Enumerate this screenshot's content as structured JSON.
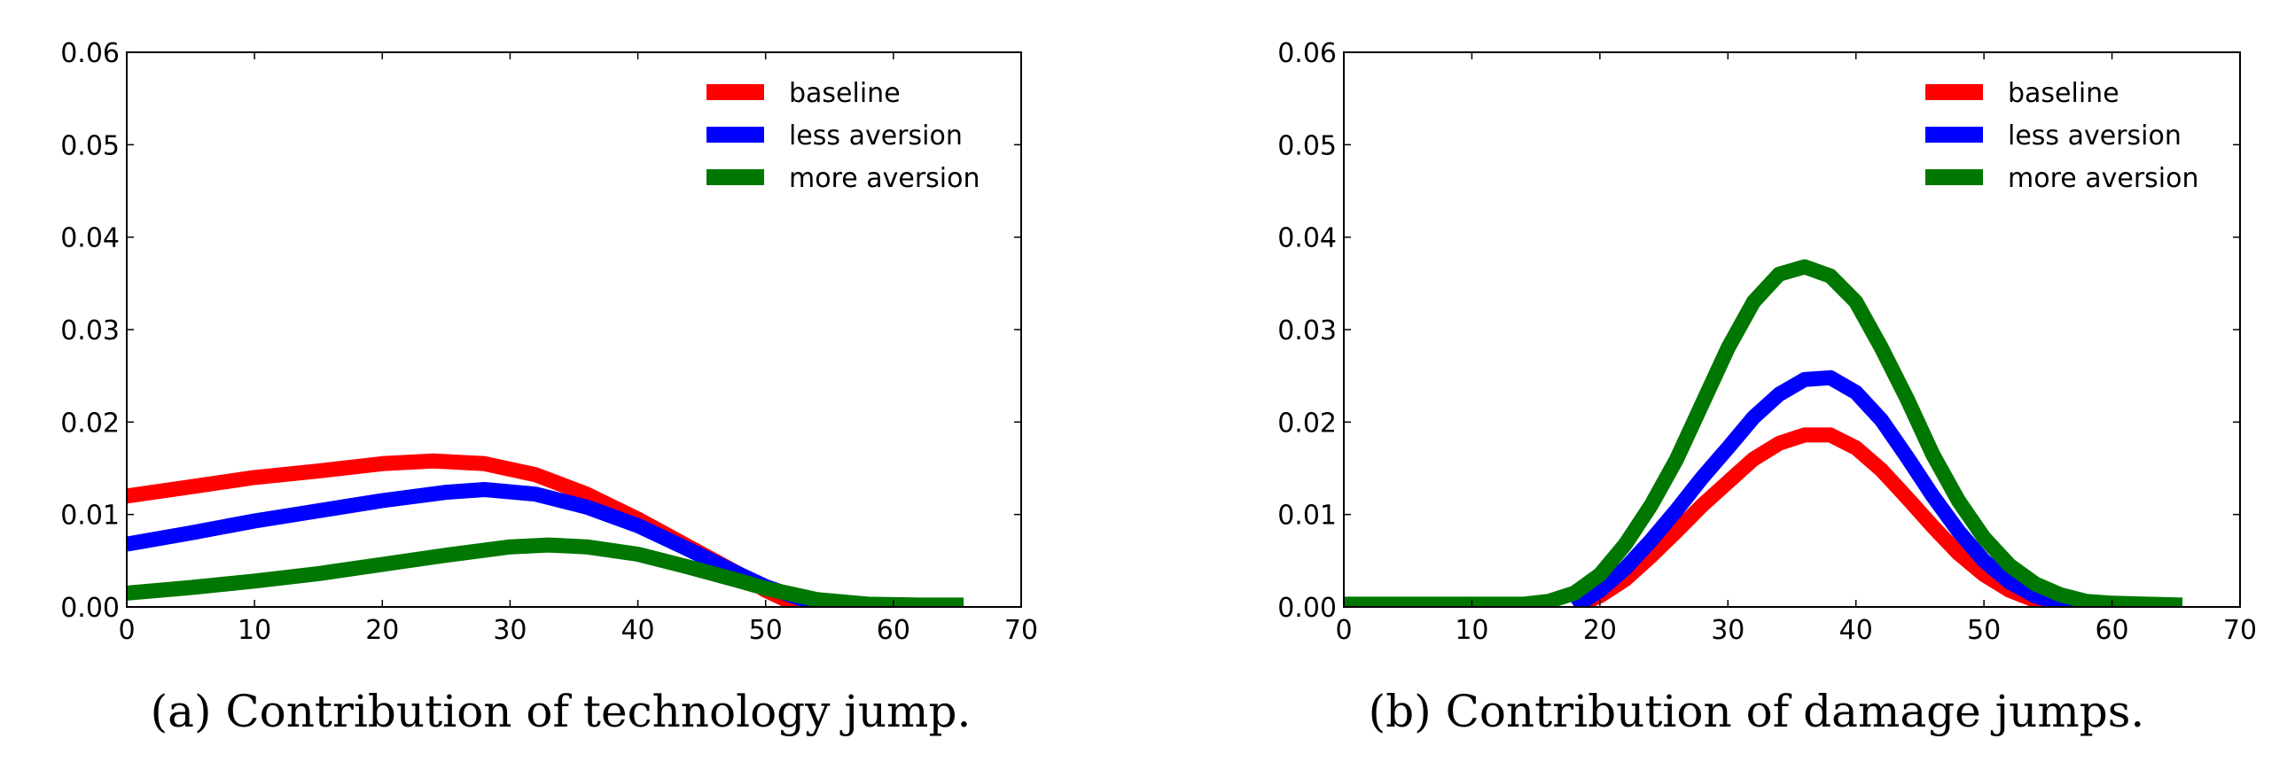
{
  "chart_data": [
    {
      "type": "line",
      "caption": "(a) Contribution of technology jump.",
      "xlim": [
        0,
        70
      ],
      "ylim": [
        0,
        0.06
      ],
      "xticks": [
        "0",
        "10",
        "20",
        "30",
        "40",
        "50",
        "60",
        "70"
      ],
      "yticks": [
        "0.00",
        "0.01",
        "0.02",
        "0.03",
        "0.04",
        "0.05",
        "0.06"
      ],
      "legend_position": "top-right",
      "series": [
        {
          "name": "baseline",
          "color": "#ff0000",
          "x": [
            0,
            5,
            10,
            15,
            20,
            24,
            28,
            32,
            36,
            40,
            44,
            48,
            50,
            52,
            54
          ],
          "y": [
            0.012,
            0.013,
            0.014,
            0.0147,
            0.0155,
            0.0158,
            0.0155,
            0.0143,
            0.0122,
            0.0095,
            0.0065,
            0.0035,
            0.0018,
            0.0005,
            0.0
          ]
        },
        {
          "name": "less aversion",
          "color": "#0000ff",
          "x": [
            0,
            5,
            10,
            15,
            20,
            25,
            28,
            32,
            36,
            40,
            44,
            48,
            50,
            54,
            56
          ],
          "y": [
            0.0068,
            0.008,
            0.0093,
            0.0104,
            0.0115,
            0.0124,
            0.0127,
            0.0122,
            0.0108,
            0.0088,
            0.0062,
            0.0035,
            0.0022,
            0.0003,
            0.0
          ]
        },
        {
          "name": "more aversion",
          "color": "#007700",
          "x": [
            0,
            5,
            10,
            15,
            20,
            25,
            30,
            33,
            36,
            40,
            44,
            48,
            50,
            54,
            58,
            62,
            65.5
          ],
          "y": [
            0.0015,
            0.0021,
            0.0028,
            0.0036,
            0.0046,
            0.0056,
            0.0065,
            0.0067,
            0.0065,
            0.0057,
            0.0043,
            0.0028,
            0.002,
            0.0008,
            0.0003,
            0.0002,
            0.0002
          ]
        }
      ]
    },
    {
      "type": "line",
      "caption": "(b) Contribution of damage jumps.",
      "xlim": [
        0,
        70
      ],
      "ylim": [
        0,
        0.06
      ],
      "xticks": [
        "0",
        "10",
        "20",
        "30",
        "40",
        "50",
        "60",
        "70"
      ],
      "yticks": [
        "0.00",
        "0.01",
        "0.02",
        "0.03",
        "0.04",
        "0.05",
        "0.06"
      ],
      "legend_position": "top-right",
      "series": [
        {
          "name": "baseline",
          "color": "#ff0000",
          "x": [
            18,
            20,
            22,
            24,
            26,
            28,
            30,
            32,
            34,
            36,
            38,
            40,
            42,
            44,
            46,
            48,
            50,
            52,
            54,
            56,
            57
          ],
          "y": [
            0,
            0.0012,
            0.003,
            0.0055,
            0.0082,
            0.011,
            0.0135,
            0.016,
            0.0177,
            0.0186,
            0.0186,
            0.0172,
            0.0148,
            0.0118,
            0.0087,
            0.0058,
            0.0035,
            0.0018,
            0.0007,
            0.0001,
            0
          ]
        },
        {
          "name": "less aversion",
          "color": "#0000ff",
          "x": [
            18,
            20,
            22,
            24,
            26,
            28,
            30,
            32,
            34,
            36,
            38,
            40,
            42,
            44,
            46,
            48,
            50,
            52,
            54,
            56,
            58
          ],
          "y": [
            0,
            0.0018,
            0.0042,
            0.0072,
            0.0105,
            0.014,
            0.0172,
            0.0205,
            0.023,
            0.0246,
            0.0248,
            0.0232,
            0.0202,
            0.0162,
            0.012,
            0.0082,
            0.005,
            0.0027,
            0.0012,
            0.0004,
            0
          ]
        },
        {
          "name": "more aversion",
          "color": "#007700",
          "x": [
            0,
            14,
            16,
            18,
            20,
            22,
            24,
            26,
            28,
            30,
            32,
            34,
            36,
            38,
            40,
            42,
            44,
            46,
            48,
            50,
            52,
            54,
            56,
            58,
            60,
            65.5
          ],
          "y": [
            0.0003,
            0.0003,
            0.0006,
            0.0015,
            0.0035,
            0.0068,
            0.011,
            0.016,
            0.022,
            0.028,
            0.033,
            0.036,
            0.0368,
            0.0358,
            0.033,
            0.028,
            0.0225,
            0.0165,
            0.0115,
            0.0075,
            0.0045,
            0.0025,
            0.0013,
            0.0006,
            0.0004,
            0.0002
          ]
        }
      ]
    }
  ]
}
